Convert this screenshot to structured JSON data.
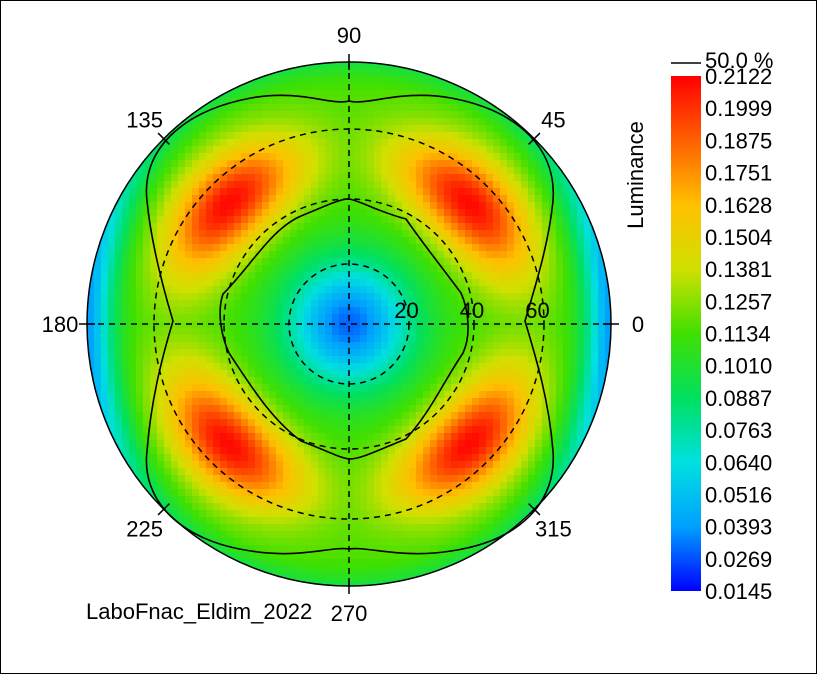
{
  "chart_data": {
    "type": "heatmap",
    "projection": "polar",
    "title": "",
    "colorbar_label": "Luminance",
    "contour_label": "50.0 %",
    "angle_ticks": [
      {
        "deg": 0,
        "label": "0"
      },
      {
        "deg": 45,
        "label": "45"
      },
      {
        "deg": 90,
        "label": "90"
      },
      {
        "deg": 135,
        "label": "135"
      },
      {
        "deg": 180,
        "label": "180"
      },
      {
        "deg": 225,
        "label": "225"
      },
      {
        "deg": 270,
        "label": "270"
      },
      {
        "deg": 315,
        "label": "315"
      }
    ],
    "radius_max": 80,
    "radial_ticks": [
      {
        "r": 20,
        "label": "20"
      },
      {
        "r": 40,
        "label": "40"
      },
      {
        "r": 60,
        "label": "60"
      }
    ],
    "colorbar_ticks": [
      "0.2122",
      "0.1999",
      "0.1875",
      "0.1751",
      "0.1628",
      "0.1504",
      "0.1381",
      "0.1257",
      "0.1134",
      "0.1010",
      "0.0887",
      "0.0763",
      "0.0640",
      "0.0516",
      "0.0393",
      "0.0269",
      "0.0145"
    ],
    "color_range": [
      0.0145,
      0.2122
    ],
    "colormap": [
      "#0000ff",
      "#00a0ff",
      "#00e0e0",
      "#00e060",
      "#40e000",
      "#d0e000",
      "#ffc000",
      "#ff6000",
      "#ff0000"
    ],
    "source_label": "LaboFnac_Eldim_2022"
  }
}
